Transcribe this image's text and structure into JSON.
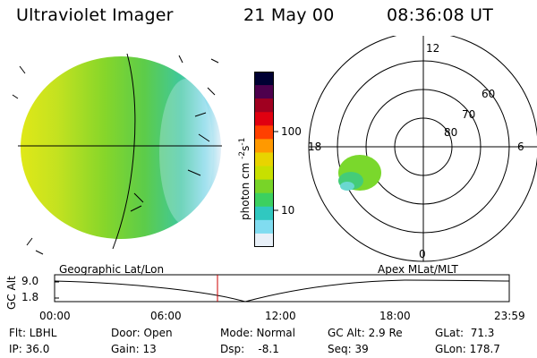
{
  "header": {
    "instrument": "Ultraviolet Imager",
    "date": "21 May 00",
    "time": "08:36:08 UT"
  },
  "colorbar": {
    "unit_label": "photon cm",
    "unit_sup1": "-2",
    "unit_mid": "s",
    "unit_sup2": "-1",
    "ticks": [
      "100",
      "10"
    ],
    "colors": [
      "#000033",
      "#4d004d",
      "#a00020",
      "#e00010",
      "#ff4000",
      "#ff9900",
      "#e8d400",
      "#c8e000",
      "#78d428",
      "#3cd060",
      "#30c8c0",
      "#80dcf0",
      "#e8f0f8"
    ]
  },
  "polar_plot": {
    "mlt_labels": [
      "12",
      "18",
      "6",
      "0"
    ],
    "lat_labels": [
      "60",
      "70",
      "80"
    ]
  },
  "timeline": {
    "left_label": "Geographic Lat/Lon",
    "right_label": "Apex MLat/MLT",
    "axis_title": "GC Alt",
    "y_values": [
      "9.0",
      "1.8"
    ],
    "time_ticks": [
      "00:00",
      "06:00",
      "12:00",
      "18:00",
      "23:59"
    ],
    "marker_color": "#cc0000"
  },
  "status": {
    "flt": "Flt: LBHL",
    "ip": "IP: 36.0",
    "door": "Door: Open",
    "gain": "Gain: 13",
    "mode": "Mode: Normal",
    "dsp": "Dsp:    -8.1",
    "gc_alt": "GC Alt: 2.9 Re",
    "seq": "Seq: 39",
    "glat": "GLat:  71.3",
    "glon": "GLon: 178.7"
  }
}
